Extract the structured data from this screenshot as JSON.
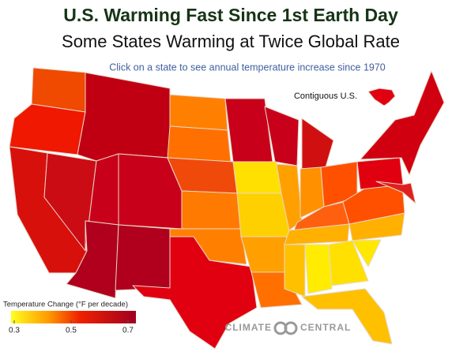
{
  "header": {
    "title": "U.S. Warming Fast Since 1st Earth Day",
    "subtitle": "Some States Warming at Twice Global Rate",
    "instruction": "Click on a state to see annual temperature increase since 1970"
  },
  "inset_label": "Contiguous U.S.",
  "legend": {
    "title": "Temperature Change (°F per decade)",
    "range": [
      0.3,
      0.7
    ],
    "ticks": [
      0.3,
      0.5,
      0.7
    ]
  },
  "logo": {
    "left": "CLIMATE",
    "right": "CENTRAL"
  }
}
